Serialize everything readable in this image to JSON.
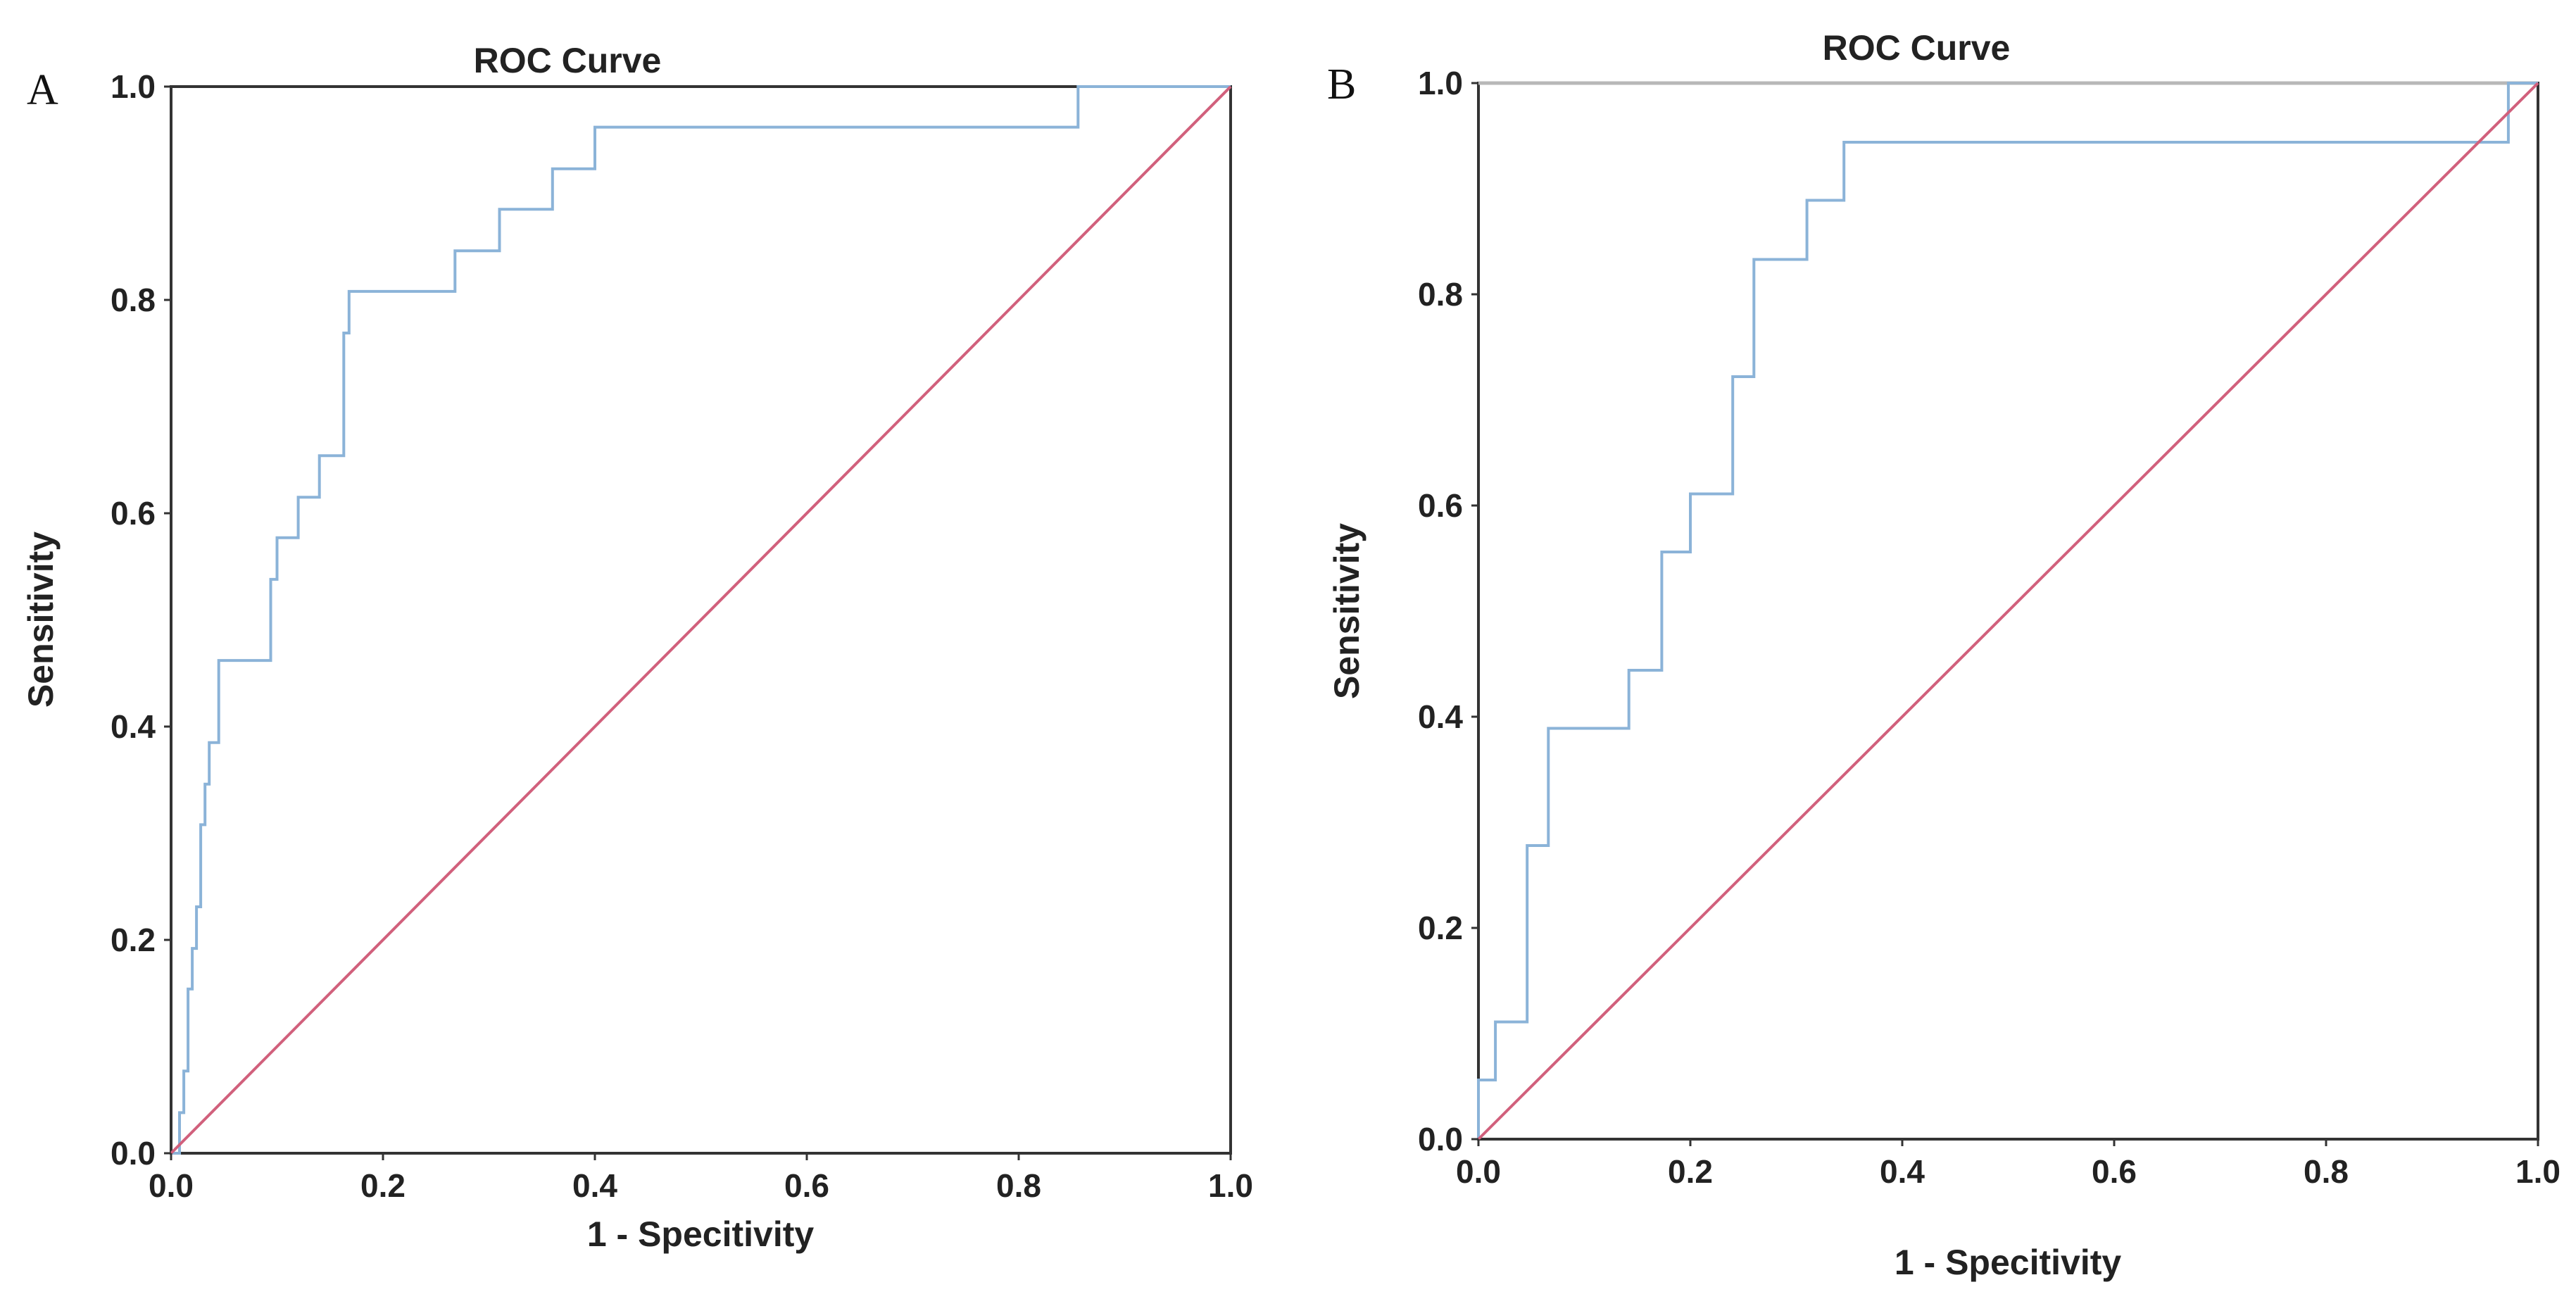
{
  "colors": {
    "roc": "#8bb3d8",
    "reference": "#d1607c",
    "frame": "#333333",
    "frame_light": "#b8b8b8"
  },
  "chart_data": [
    {
      "panel": "A",
      "type": "line",
      "title": "ROC Curve",
      "xlabel": "1 - Specitivity",
      "ylabel": "Sensitivity",
      "xlim": [
        0,
        1
      ],
      "ylim": [
        0,
        1
      ],
      "xticks": [
        "0.0",
        "0.2",
        "0.4",
        "0.6",
        "0.8",
        "1.0"
      ],
      "yticks": [
        "0.0",
        "0.2",
        "0.4",
        "0.6",
        "0.8",
        "1.0"
      ],
      "grid": false,
      "series": [
        {
          "name": "roc",
          "step": true,
          "points": [
            [
              0.0,
              0.0
            ],
            [
              0.008,
              0.0
            ],
            [
              0.008,
              0.038
            ],
            [
              0.012,
              0.038
            ],
            [
              0.012,
              0.077
            ],
            [
              0.016,
              0.077
            ],
            [
              0.016,
              0.154
            ],
            [
              0.02,
              0.154
            ],
            [
              0.02,
              0.192
            ],
            [
              0.024,
              0.192
            ],
            [
              0.024,
              0.231
            ],
            [
              0.028,
              0.231
            ],
            [
              0.028,
              0.308
            ],
            [
              0.032,
              0.308
            ],
            [
              0.032,
              0.346
            ],
            [
              0.036,
              0.346
            ],
            [
              0.036,
              0.385
            ],
            [
              0.045,
              0.385
            ],
            [
              0.045,
              0.462
            ],
            [
              0.094,
              0.462
            ],
            [
              0.094,
              0.538
            ],
            [
              0.1,
              0.538
            ],
            [
              0.1,
              0.577
            ],
            [
              0.12,
              0.577
            ],
            [
              0.12,
              0.615
            ],
            [
              0.14,
              0.615
            ],
            [
              0.14,
              0.654
            ],
            [
              0.163,
              0.654
            ],
            [
              0.163,
              0.769
            ],
            [
              0.168,
              0.769
            ],
            [
              0.168,
              0.808
            ],
            [
              0.268,
              0.808
            ],
            [
              0.268,
              0.846
            ],
            [
              0.31,
              0.846
            ],
            [
              0.31,
              0.885
            ],
            [
              0.36,
              0.885
            ],
            [
              0.36,
              0.923
            ],
            [
              0.4,
              0.923
            ],
            [
              0.4,
              0.962
            ],
            [
              0.856,
              0.962
            ],
            [
              0.856,
              1.0
            ],
            [
              1.0,
              1.0
            ]
          ]
        },
        {
          "name": "reference",
          "points": [
            [
              0,
              0
            ],
            [
              1,
              1
            ]
          ]
        }
      ]
    },
    {
      "panel": "B",
      "type": "line",
      "title": "ROC Curve",
      "xlabel": "1 - Specitivity",
      "ylabel": "Sensitivity",
      "xlim": [
        0,
        1
      ],
      "ylim": [
        0,
        1
      ],
      "xticks": [
        "0.0",
        "0.2",
        "0.4",
        "0.6",
        "0.8",
        "1.0"
      ],
      "yticks": [
        "0.0",
        "0.2",
        "0.4",
        "0.6",
        "0.8",
        "1.0"
      ],
      "grid": false,
      "series": [
        {
          "name": "roc",
          "step": true,
          "points": [
            [
              0.0,
              0.0
            ],
            [
              0.0,
              0.056
            ],
            [
              0.016,
              0.056
            ],
            [
              0.016,
              0.111
            ],
            [
              0.046,
              0.111
            ],
            [
              0.046,
              0.278
            ],
            [
              0.066,
              0.278
            ],
            [
              0.066,
              0.389
            ],
            [
              0.142,
              0.389
            ],
            [
              0.142,
              0.444
            ],
            [
              0.173,
              0.444
            ],
            [
              0.173,
              0.556
            ],
            [
              0.2,
              0.556
            ],
            [
              0.2,
              0.611
            ],
            [
              0.24,
              0.611
            ],
            [
              0.24,
              0.722
            ],
            [
              0.26,
              0.722
            ],
            [
              0.26,
              0.833
            ],
            [
              0.31,
              0.833
            ],
            [
              0.31,
              0.889
            ],
            [
              0.345,
              0.889
            ],
            [
              0.345,
              0.944
            ],
            [
              0.972,
              0.944
            ],
            [
              0.972,
              1.0
            ],
            [
              1.0,
              1.0
            ]
          ]
        },
        {
          "name": "reference",
          "points": [
            [
              0,
              0
            ],
            [
              1,
              1
            ]
          ]
        }
      ]
    }
  ]
}
